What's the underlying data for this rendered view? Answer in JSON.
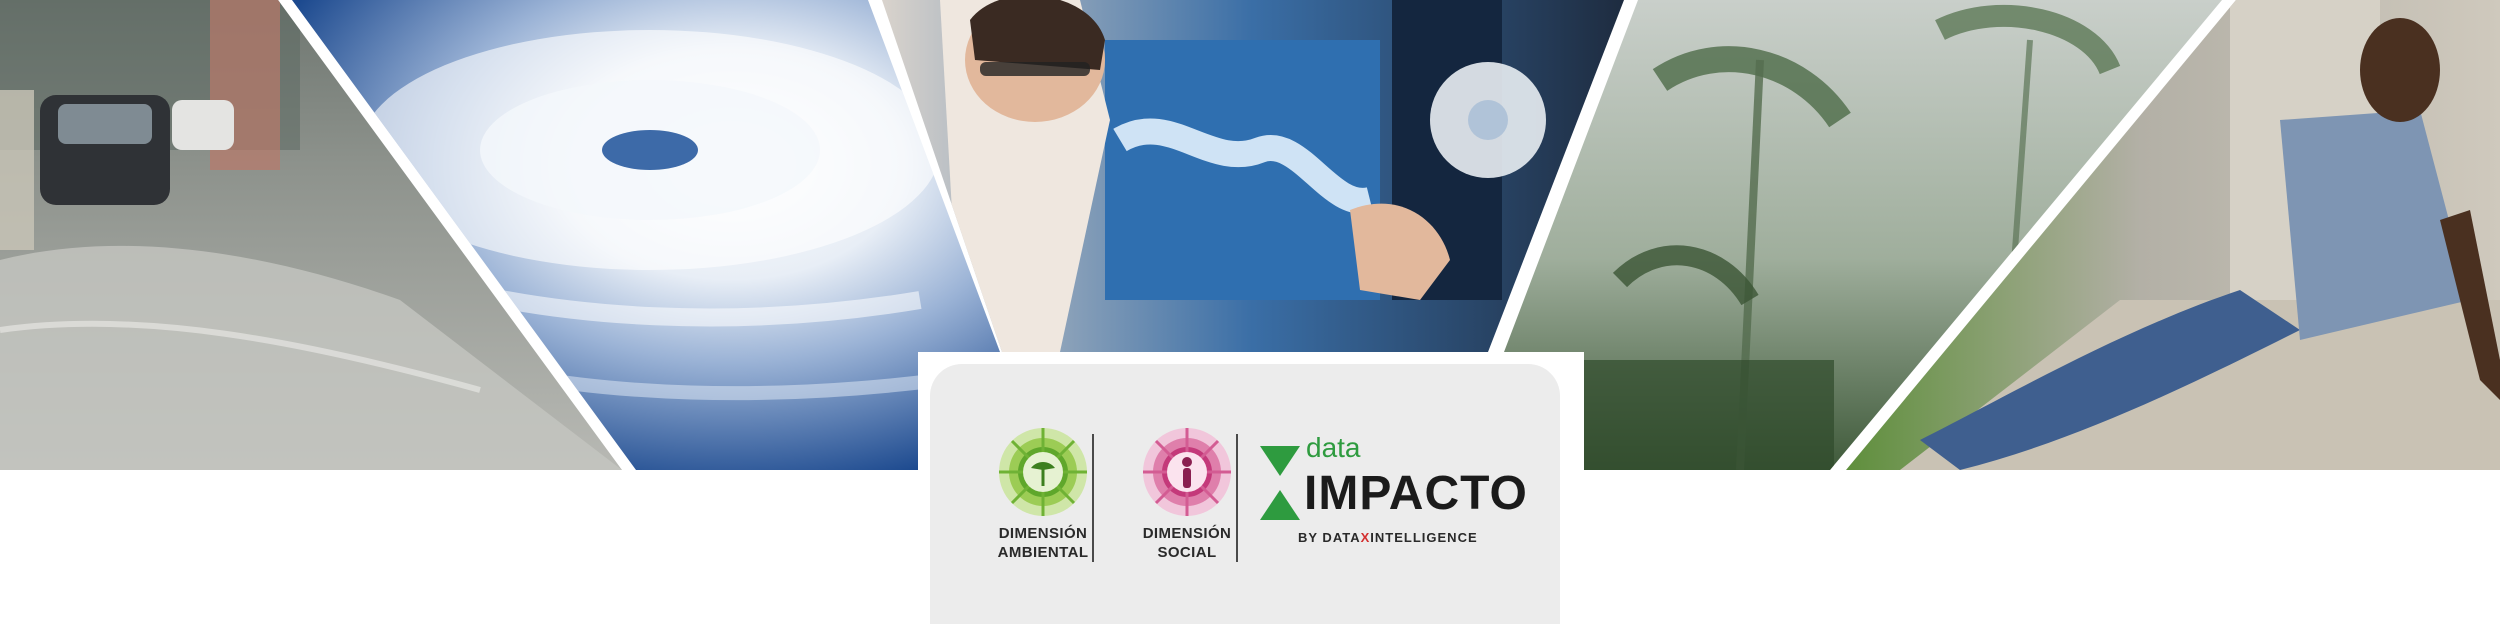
{
  "photos": [
    {
      "name": "flooded-street"
    },
    {
      "name": "hurricane-satellite"
    },
    {
      "name": "analyst-monitoring"
    },
    {
      "name": "storm-palms"
    },
    {
      "name": "displaced-person"
    }
  ],
  "logos": {
    "ambiental": {
      "label": "DIMENSIÓN\nAMBIENTAL",
      "color": "#7cbd3a"
    },
    "social": {
      "label": "DIMENSIÓN\nSOCIAL",
      "color": "#c4397a"
    },
    "brand": {
      "small": "data",
      "main": "IMPACTO",
      "by_prefix": "BY DATA",
      "by_x": "X",
      "by_suffix": "INTELLIGENCE",
      "green": "#2e9b3f",
      "red": "#d32f2f"
    }
  }
}
